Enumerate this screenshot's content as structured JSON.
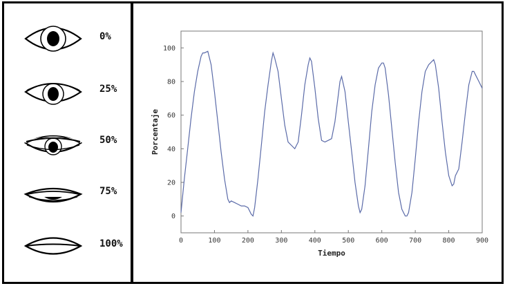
{
  "eye_scale": {
    "items": [
      {
        "label": "0%",
        "closure": 0
      },
      {
        "label": "25%",
        "closure": 0.25
      },
      {
        "label": "50%",
        "closure": 0.5
      },
      {
        "label": "75%",
        "closure": 0.75
      },
      {
        "label": "100%",
        "closure": 1
      }
    ]
  },
  "chart_data": {
    "type": "line",
    "xlabel": "Tiempo",
    "ylabel": "Porcentaje",
    "xlim": [
      0,
      900
    ],
    "ylim": [
      -10,
      110
    ],
    "xticks": [
      0,
      100,
      200,
      300,
      400,
      500,
      600,
      700,
      800,
      900
    ],
    "yticks": [
      0,
      20,
      40,
      60,
      80,
      100
    ],
    "grid": false,
    "line_color": "#5a6aa8",
    "series": [
      {
        "x": [
          0,
          10,
          20,
          30,
          40,
          50,
          60,
          65,
          70,
          80,
          90,
          100,
          110,
          120,
          130,
          140,
          145,
          150,
          160,
          170,
          180,
          190,
          200,
          210,
          215,
          220,
          230,
          240,
          250,
          260,
          270,
          275,
          280,
          290,
          300,
          310,
          320,
          330,
          340,
          350,
          360,
          370,
          380,
          385,
          390,
          400,
          410,
          420,
          430,
          440,
          450,
          460,
          470,
          475,
          480,
          490,
          500,
          510,
          520,
          530,
          535,
          540,
          550,
          560,
          570,
          580,
          590,
          600,
          605,
          610,
          620,
          630,
          640,
          650,
          660,
          670,
          675,
          680,
          690,
          700,
          710,
          720,
          730,
          740,
          750,
          755,
          760,
          770,
          780,
          790,
          800,
          810,
          815,
          820,
          830,
          840,
          850,
          860,
          870,
          875,
          880,
          890,
          900
        ],
        "y": [
          2,
          22,
          40,
          58,
          74,
          86,
          95,
          97,
          97,
          98,
          90,
          74,
          56,
          38,
          22,
          10,
          8,
          9,
          8,
          7,
          6,
          6,
          5,
          1,
          0,
          5,
          22,
          42,
          62,
          78,
          92,
          97,
          94,
          86,
          70,
          54,
          44,
          42,
          40,
          44,
          60,
          78,
          90,
          94,
          92,
          76,
          58,
          45,
          44,
          45,
          46,
          56,
          72,
          80,
          83,
          74,
          56,
          38,
          20,
          6,
          2,
          4,
          18,
          40,
          62,
          78,
          88,
          91,
          91,
          88,
          72,
          52,
          32,
          14,
          4,
          0,
          0,
          2,
          14,
          34,
          56,
          74,
          86,
          90,
          92,
          93,
          90,
          76,
          56,
          38,
          24,
          18,
          19,
          24,
          28,
          44,
          62,
          78,
          86,
          86,
          84,
          80,
          76
        ]
      }
    ]
  }
}
